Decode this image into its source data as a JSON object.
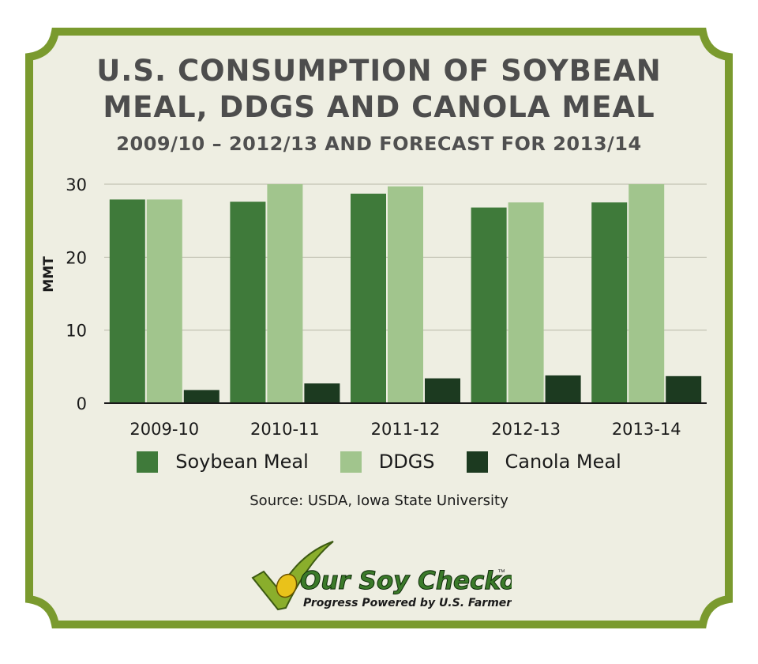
{
  "colors": {
    "border": "#7a9a2e",
    "background": "#eeeee2",
    "soybean": "#3f7a3a",
    "ddgs": "#a1c58d",
    "canola": "#1c3a20",
    "grid": "#b8b8a8"
  },
  "chart_data": {
    "type": "bar",
    "title": "U.S. CONSUMPTION OF SOYBEAN MEAL, DDGS AND CANOLA MEAL",
    "title_line1": "U.S. CONSUMPTION OF SOYBEAN",
    "title_line2": "MEAL, DDGS AND CANOLA MEAL",
    "subtitle": "2009/10 – 2012/13 AND FORECAST FOR 2013/14",
    "xlabel": "",
    "ylabel": "MMT",
    "ylim": [
      0,
      30
    ],
    "yticks": [
      0,
      10,
      20,
      30
    ],
    "grid": true,
    "legend_position": "bottom",
    "categories": [
      "2009-10",
      "2010-11",
      "2011-12",
      "2012-13",
      "2013-14"
    ],
    "series": [
      {
        "name": "Soybean Meal",
        "values": [
          27.9,
          27.6,
          28.7,
          26.8,
          27.5
        ]
      },
      {
        "name": "DDGS",
        "values": [
          27.9,
          30.0,
          29.7,
          27.5,
          30.0
        ]
      },
      {
        "name": "Canola Meal",
        "values": [
          1.8,
          2.7,
          3.4,
          3.8,
          3.7
        ]
      }
    ]
  },
  "source": "Source: USDA, Iowa State University",
  "logo": {
    "name": "Our Soy Checkoff",
    "trademark": "™",
    "tagline": "Progress Powered by U.S. Farmers"
  }
}
